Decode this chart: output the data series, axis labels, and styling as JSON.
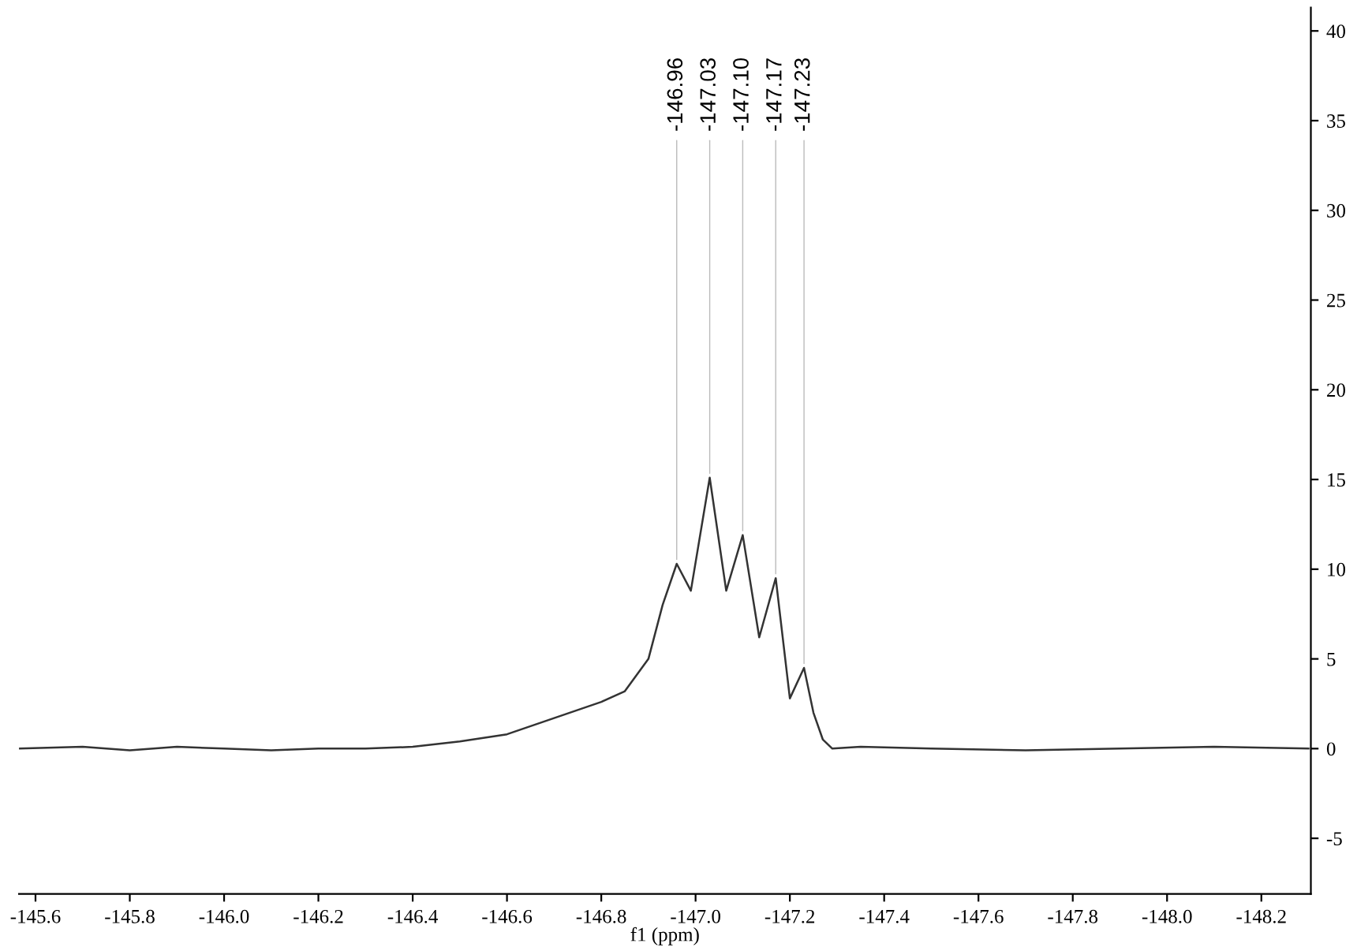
{
  "chart_data": {
    "type": "line",
    "xlabel": "f1 (ppm)",
    "series": [
      {
        "color": "#333333",
        "x": [
          -145.565,
          -145.7,
          -145.8,
          -145.9,
          -146.0,
          -146.1,
          -146.2,
          -146.3,
          -146.4,
          -146.5,
          -146.6,
          -146.7,
          -146.8,
          -146.85,
          -146.9,
          -146.93,
          -146.96,
          -146.99,
          -147.03,
          -147.065,
          -147.1,
          -147.135,
          -147.17,
          -147.2,
          -147.23,
          -147.25,
          -147.27,
          -147.29,
          -147.35,
          -147.5,
          -147.7,
          -147.9,
          -148.1,
          -148.3
        ],
        "values": [
          0,
          0.1,
          -0.1,
          0.1,
          0,
          -0.1,
          0,
          0,
          0.1,
          0.4,
          0.8,
          1.7,
          2.6,
          3.2,
          5,
          8,
          10.3,
          8.8,
          15.1,
          8.8,
          11.9,
          6.2,
          9.5,
          2.8,
          4.5,
          2,
          0.5,
          0,
          0.1,
          0,
          -0.1,
          0,
          0.1,
          0
        ]
      }
    ],
    "xlim": [
      -145.565,
      -148.305
    ],
    "xticks": [
      -145.6,
      -145.8,
      {
        "value": -146,
        "label": "-146.0"
      },
      -146.2,
      -146.4,
      -146.6,
      -146.8,
      {
        "value": -147,
        "label": "-147.0"
      },
      -147.2,
      -147.4,
      -147.6,
      -147.8,
      {
        "value": -148,
        "label": "-148.0"
      },
      -148.2
    ],
    "ylim": [
      -8.1,
      41.3
    ],
    "yticks": [
      -5,
      0,
      5,
      10,
      15,
      20,
      25,
      30,
      35,
      40
    ],
    "annotations": [
      {
        "text": "-146.96",
        "x": -146.96,
        "y": 10.3
      },
      {
        "text": "-147.03",
        "x": -147.03,
        "y": 15.1
      },
      {
        "text": "-147.10",
        "x": -147.1,
        "y": 11.9
      },
      {
        "text": "-147.17",
        "x": -147.17,
        "y": 9.5
      },
      {
        "text": "-147.23",
        "x": -147.23,
        "y": 4.5
      }
    ],
    "grid": false,
    "legend": false,
    "marker": "none",
    "line_style": "solid"
  }
}
